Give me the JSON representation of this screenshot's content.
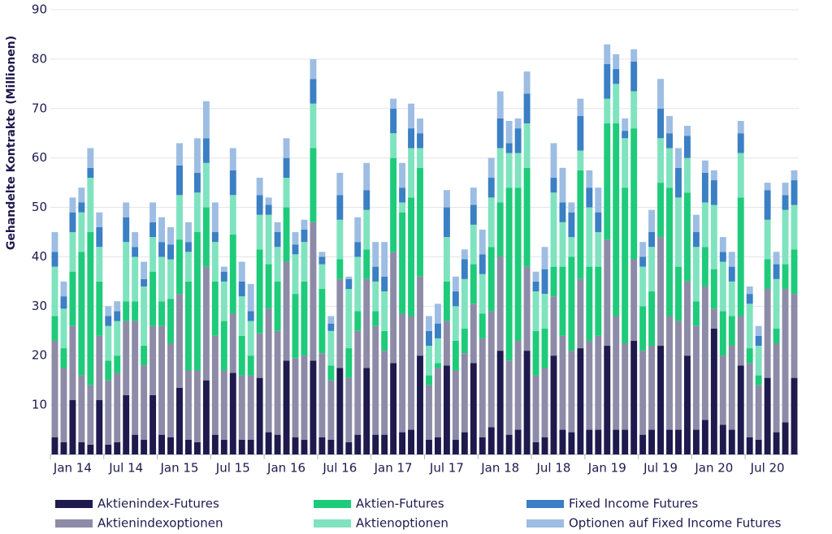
{
  "chart_data": {
    "type": "bar",
    "stacked": true,
    "y_label": "Gehandelte Kontrakte (Millionen)",
    "ylim": [
      0,
      90
    ],
    "yticks": [
      10,
      20,
      30,
      40,
      50,
      60,
      70,
      80,
      90
    ],
    "grid": true,
    "categories": [
      null,
      null,
      "Jan 14",
      null,
      null,
      null,
      null,
      null,
      "Jul 14",
      null,
      null,
      null,
      null,
      null,
      "Jan 15",
      null,
      null,
      null,
      null,
      null,
      "Jul 15",
      null,
      null,
      null,
      null,
      null,
      "Jan 16",
      null,
      null,
      null,
      null,
      null,
      "Jul 16",
      null,
      null,
      null,
      null,
      null,
      "Jan 17",
      null,
      null,
      null,
      null,
      null,
      "Jul 17",
      null,
      null,
      null,
      null,
      null,
      "Jan 18",
      null,
      null,
      null,
      null,
      null,
      "Jul 18",
      null,
      null,
      null,
      null,
      null,
      "Jan 19",
      null,
      null,
      null,
      null,
      null,
      "Jul 19",
      null,
      null,
      null,
      null,
      null,
      "Jan 20",
      null,
      null,
      null,
      null,
      null,
      "Jul 20",
      null,
      null,
      null
    ],
    "series": [
      {
        "name": "Aktienindex-Futures",
        "color": "#1e1a4d",
        "values": [
          3.5,
          2.5,
          11,
          2.5,
          2,
          11,
          2,
          2.5,
          12,
          4,
          3,
          12,
          4,
          3.5,
          13.5,
          3,
          2.5,
          15,
          4,
          3,
          16.5,
          3,
          3,
          15.5,
          4.5,
          4,
          19,
          3.5,
          3,
          19,
          3.5,
          3,
          17.5,
          2.5,
          4,
          17.5,
          4,
          4,
          18.5,
          4.5,
          5,
          20,
          3,
          3.5,
          18,
          3,
          4.5,
          18.5,
          3.5,
          5.5,
          21,
          4,
          5,
          21,
          2.5,
          3.5,
          20,
          5,
          4.5,
          21.5,
          5,
          5,
          22,
          5,
          5,
          23,
          4,
          5,
          22,
          5,
          5,
          20,
          5,
          7,
          25.5,
          6,
          5,
          18,
          3.5,
          3,
          15.5,
          4.5,
          6.5,
          15.5
        ]
      },
      {
        "name": "Aktienindexoptionen",
        "color": "#8e8ba8",
        "values": [
          19.5,
          15,
          15,
          13.5,
          12,
          13,
          13,
          14,
          15,
          23,
          15,
          14,
          22,
          19,
          19,
          14,
          14.5,
          23,
          20,
          14,
          12,
          13,
          13,
          9,
          25,
          21,
          20,
          16,
          17,
          28,
          17,
          12,
          18,
          13,
          21,
          18,
          22,
          17,
          22.5,
          24,
          23,
          16,
          11,
          14,
          9,
          14,
          16,
          12,
          20,
          23.5,
          19,
          15,
          18,
          17,
          13.5,
          14,
          12,
          19,
          16.5,
          14,
          18,
          19,
          21.5,
          23,
          17.5,
          16.5,
          17,
          17,
          22,
          23,
          22,
          15,
          21,
          27,
          4,
          14,
          17,
          10,
          15,
          11,
          18,
          18,
          27,
          17
        ]
      },
      {
        "name": "Aktien-Futures",
        "color": "#1ecb7a",
        "values": [
          5,
          4,
          11,
          25,
          31,
          11,
          4,
          3.5,
          4,
          4,
          4,
          11,
          5,
          9,
          11,
          18,
          28,
          12,
          11,
          10,
          16,
          8,
          4,
          17,
          9,
          10,
          11,
          13,
          15,
          15,
          13,
          3,
          4,
          6,
          4,
          6,
          3,
          4,
          19,
          20.5,
          24,
          22,
          2,
          1,
          8,
          6,
          5,
          8,
          5,
          13,
          11,
          35,
          31,
          20,
          9,
          8,
          6,
          14,
          19,
          22,
          15,
          14,
          23.5,
          39,
          31.5,
          26.5,
          9,
          11,
          11,
          26,
          11,
          18,
          5,
          8,
          8,
          9,
          6,
          24,
          3,
          2,
          6,
          3,
          5,
          9
        ]
      },
      {
        "name": "Aktienoptionen",
        "color": "#7fe3bf",
        "values": [
          10,
          8,
          8,
          8,
          11,
          7,
          7,
          7,
          12,
          9,
          12,
          7,
          9,
          8,
          9,
          6,
          8,
          9,
          8,
          8,
          8,
          8,
          7,
          7,
          10,
          7,
          6,
          8,
          8,
          9,
          5,
          7,
          8,
          12,
          11,
          8,
          6,
          8,
          5,
          2,
          10,
          4,
          6,
          5,
          9,
          7,
          10,
          8,
          8,
          10,
          11,
          7,
          7,
          9,
          8,
          7,
          15,
          9,
          4,
          4,
          12,
          7,
          5,
          8,
          10,
          7.5,
          8,
          9,
          9,
          8,
          14,
          7,
          11,
          9,
          13,
          10,
          7,
          9,
          9,
          6,
          8,
          10,
          11,
          9
        ]
      },
      {
        "name": "Fixed Income Futures",
        "color": "#3b7fc4",
        "values": [
          3,
          2.5,
          4,
          2,
          2,
          4,
          2,
          2,
          5,
          2,
          1.5,
          3,
          3,
          3,
          6,
          2,
          4,
          5,
          2,
          2,
          5,
          3,
          2,
          4,
          2,
          3,
          4,
          2,
          2.5,
          5,
          1.5,
          1.5,
          5,
          2,
          3,
          4,
          3,
          3,
          5,
          3,
          4,
          3,
          3,
          3,
          6,
          3,
          4,
          4,
          4,
          4,
          6,
          2,
          5,
          6,
          2,
          5,
          3,
          4,
          5,
          7,
          4,
          4,
          7,
          3,
          1.5,
          6,
          2,
          3,
          6,
          3,
          6,
          4.5,
          3,
          6,
          5,
          2,
          3,
          4,
          2,
          2,
          6,
          3,
          3,
          5
        ]
      },
      {
        "name": "Optionen auf Fixed Income Futures",
        "color": "#9dbde3",
        "values": [
          4,
          3,
          3,
          3,
          4,
          3,
          2,
          2,
          3,
          3,
          3.5,
          4,
          5,
          3.5,
          4.5,
          4,
          7,
          7.5,
          6,
          1,
          4.5,
          4,
          5.5,
          3.5,
          1.5,
          2,
          4,
          2.5,
          2,
          4,
          1,
          1.5,
          4.5,
          0.5,
          5,
          5.5,
          5,
          7,
          2,
          5,
          5,
          3,
          3,
          4,
          3.5,
          3,
          2,
          3.5,
          5,
          4,
          5.5,
          4.5,
          2,
          4.5,
          2,
          4.5,
          7,
          7,
          2,
          3.5,
          3.5,
          5,
          4,
          3,
          2.5,
          2.5,
          3,
          4.5,
          6,
          3.5,
          4,
          2,
          3.5,
          2.5,
          2,
          3,
          3,
          2.5,
          1.5,
          2,
          1.5,
          2.5,
          2.5,
          2
        ]
      }
    ]
  }
}
